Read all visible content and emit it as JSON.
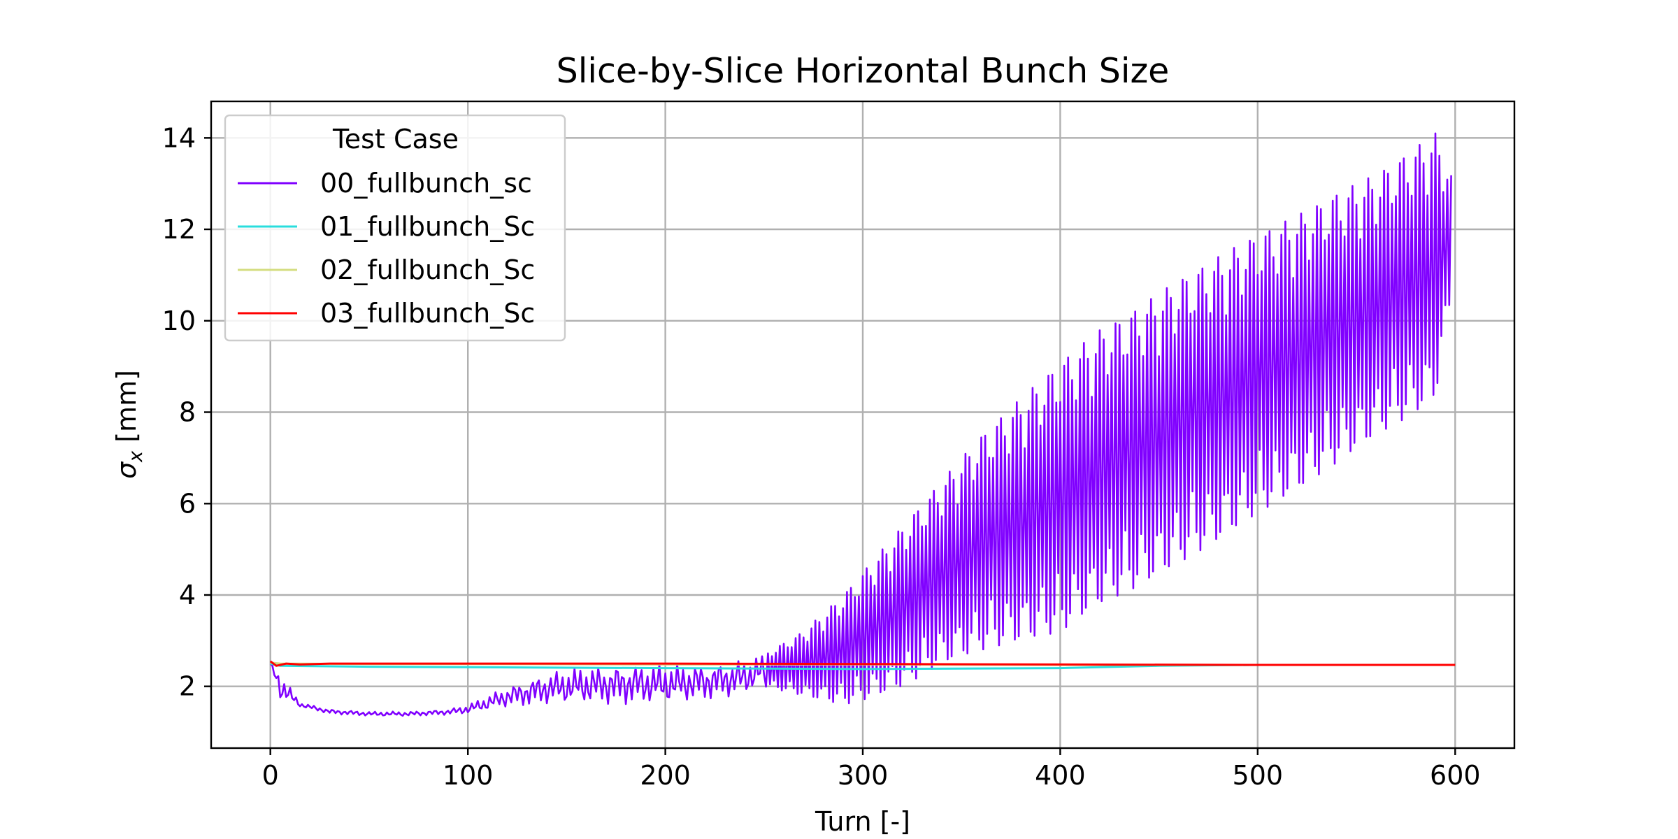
{
  "chart_data": {
    "type": "line",
    "title": "Slice-by-Slice Horizontal Bunch Size",
    "xlabel": "Turn [-]",
    "ylabel_symbol": "σ",
    "ylabel_subscript": "x",
    "ylabel_unit": " [mm]",
    "xlim": [
      -30,
      630
    ],
    "ylim": [
      0.65,
      14.8
    ],
    "xticks": [
      0,
      100,
      200,
      300,
      400,
      500,
      600
    ],
    "yticks": [
      2,
      4,
      6,
      8,
      10,
      12,
      14
    ],
    "grid": true,
    "legend": {
      "title": "Test Case",
      "placement": "top-left"
    },
    "series": [
      {
        "name": "00_fullbunch_sc",
        "color": "#8000ff",
        "x": [
          0,
          5,
          15,
          30,
          50,
          70,
          90,
          100,
          120,
          140,
          160,
          180,
          200,
          220,
          240,
          250,
          270,
          290,
          300,
          320,
          340,
          360,
          380,
          400,
          420,
          440,
          460,
          480,
          500,
          520,
          540,
          560,
          580,
          590,
          598
        ],
        "upper": [
          2.5,
          2.3,
          1.65,
          1.5,
          1.45,
          1.45,
          1.5,
          1.6,
          2.0,
          2.3,
          2.45,
          2.5,
          2.5,
          2.5,
          2.6,
          2.7,
          3.2,
          4.0,
          4.5,
          5.5,
          6.5,
          7.5,
          8.3,
          9.1,
          9.8,
          10.3,
          10.9,
          11.4,
          11.9,
          12.3,
          12.8,
          13.2,
          13.8,
          14.1,
          13.2
        ],
        "lower": [
          2.5,
          1.7,
          1.55,
          1.4,
          1.35,
          1.35,
          1.38,
          1.4,
          1.55,
          1.6,
          1.6,
          1.6,
          1.6,
          1.7,
          1.8,
          2.0,
          1.8,
          1.6,
          1.7,
          2.0,
          2.5,
          2.8,
          3.0,
          3.2,
          3.8,
          4.2,
          4.7,
          5.2,
          5.8,
          6.3,
          6.9,
          7.5,
          8.0,
          8.3,
          10.5
        ]
      },
      {
        "name": "01_fullbunch_Sc",
        "color": "#2adddd",
        "x": [
          0,
          5,
          50,
          100,
          200,
          300,
          400,
          450,
          500,
          600
        ],
        "values": [
          2.5,
          2.45,
          2.43,
          2.42,
          2.4,
          2.38,
          2.4,
          2.45,
          2.47,
          2.47
        ]
      },
      {
        "name": "02_fullbunch_Sc",
        "color": "#d4dd80",
        "x": [
          0,
          5,
          50,
          100,
          200,
          300,
          400,
          500,
          600
        ],
        "values": [
          2.52,
          2.5,
          2.49,
          2.49,
          2.48,
          2.48,
          2.47,
          2.47,
          2.47
        ]
      },
      {
        "name": "03_fullbunch_Sc",
        "color": "#ff0000",
        "x": [
          0,
          3,
          8,
          15,
          30,
          100,
          200,
          300,
          400,
          500,
          600
        ],
        "values": [
          2.55,
          2.45,
          2.5,
          2.48,
          2.5,
          2.5,
          2.5,
          2.49,
          2.48,
          2.47,
          2.47
        ]
      }
    ]
  }
}
